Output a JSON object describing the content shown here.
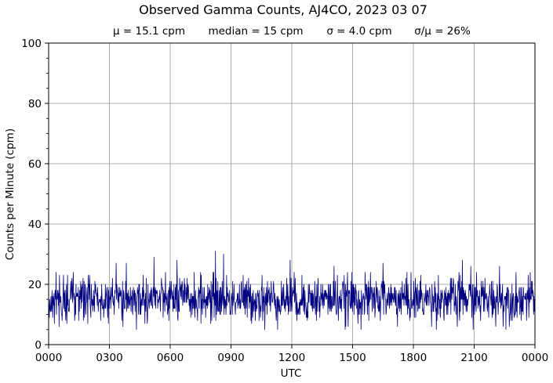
{
  "chart_data": {
    "type": "line",
    "title": "Observed Gamma Counts, AJ4CO, 2023 03 07",
    "subtitle": [
      "μ = 15.1 cpm",
      "median = 15 cpm",
      "σ = 4.0 cpm",
      "σ/μ = 26%"
    ],
    "xlabel": "UTC",
    "ylabel": "Counts per Minute (cpm)",
    "xlim": [
      0,
      1440
    ],
    "ylim": [
      0,
      100
    ],
    "x_ticks": [
      0,
      180,
      360,
      540,
      720,
      900,
      1080,
      1260,
      1440
    ],
    "x_tick_labels": [
      "0000",
      "0300",
      "0600",
      "0900",
      "1200",
      "1500",
      "1800",
      "2100",
      "0000"
    ],
    "y_ticks": [
      0,
      20,
      40,
      60,
      80,
      100
    ],
    "y_tick_labels": [
      "0",
      "20",
      "40",
      "60",
      "80",
      "100"
    ],
    "y_minor_step": 5,
    "grid": true,
    "colors": {
      "series": "#000080",
      "grid": "#999999",
      "axis": "#000000"
    },
    "series": [
      {
        "x_start": 0,
        "x_step": 1,
        "mean": 15.1,
        "median": 15,
        "std": 4.0,
        "peaks": [
          {
            "x": 200,
            "y": 27
          },
          {
            "x": 230,
            "y": 27
          },
          {
            "x": 312,
            "y": 29
          },
          {
            "x": 380,
            "y": 28
          },
          {
            "x": 494,
            "y": 31
          },
          {
            "x": 518,
            "y": 30
          },
          {
            "x": 715,
            "y": 28
          },
          {
            "x": 845,
            "y": 26
          },
          {
            "x": 990,
            "y": 27
          },
          {
            "x": 1225,
            "y": 28
          },
          {
            "x": 1250,
            "y": 26
          },
          {
            "x": 1335,
            "y": 26
          }
        ],
        "troughs": [
          {
            "x": 40,
            "y": 8
          },
          {
            "x": 220,
            "y": 6
          },
          {
            "x": 260,
            "y": 5
          },
          {
            "x": 640,
            "y": 5
          },
          {
            "x": 880,
            "y": 6
          },
          {
            "x": 1210,
            "y": 6
          }
        ]
      }
    ]
  }
}
